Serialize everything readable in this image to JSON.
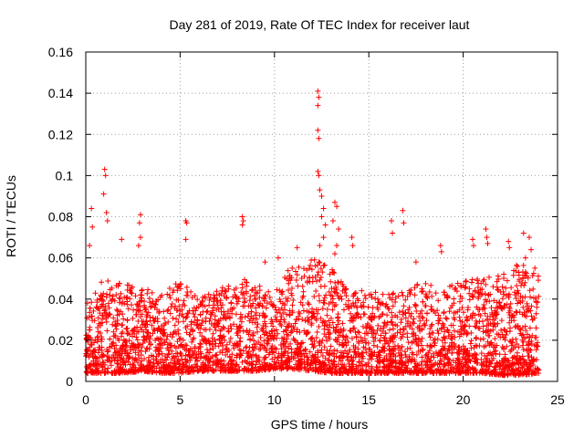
{
  "chart_data": {
    "type": "scatter",
    "title": "Day 281 of 2019, Rate Of TEC Index for receiver laut",
    "xlabel": "GPS time / hours",
    "ylabel": "ROTI / TECUs",
    "xlim": [
      0,
      25
    ],
    "ylim": [
      0,
      0.16
    ],
    "x_ticks": [
      0,
      5,
      10,
      15,
      20,
      25
    ],
    "x_tick_labels": [
      "0",
      "5",
      "10",
      "15",
      "20",
      "25"
    ],
    "y_ticks": [
      0,
      0.02,
      0.04,
      0.06,
      0.08,
      0.1,
      0.12,
      0.14,
      0.16
    ],
    "y_tick_labels": [
      "0",
      "0.02",
      "0.04",
      "0.06",
      "0.08",
      "0.1",
      "0.12",
      "0.14",
      "0.16"
    ],
    "grid": true,
    "marker": "+",
    "marker_color": "#ff0000",
    "series_note": "dense cloud of ROTI values between 0.003 and 0.06 across 0-24 h; spikes listed below",
    "base_envelope": {
      "hours": [
        0,
        1,
        2,
        3,
        4,
        5,
        6,
        7,
        8,
        9,
        10,
        11,
        12,
        13,
        14,
        15,
        16,
        17,
        18,
        19,
        20,
        21,
        22,
        23,
        24
      ],
      "upper": [
        0.04,
        0.05,
        0.05,
        0.046,
        0.042,
        0.05,
        0.04,
        0.045,
        0.052,
        0.048,
        0.044,
        0.058,
        0.06,
        0.055,
        0.045,
        0.045,
        0.042,
        0.046,
        0.048,
        0.045,
        0.05,
        0.05,
        0.052,
        0.058,
        0.055
      ],
      "lower": [
        0.004,
        0.004,
        0.004,
        0.005,
        0.004,
        0.004,
        0.005,
        0.005,
        0.005,
        0.005,
        0.006,
        0.006,
        0.005,
        0.004,
        0.004,
        0.004,
        0.004,
        0.004,
        0.004,
        0.004,
        0.004,
        0.004,
        0.003,
        0.003,
        0.004
      ]
    },
    "spikes": [
      {
        "x": 0.3,
        "y": 0.084
      },
      {
        "x": 0.35,
        "y": 0.075
      },
      {
        "x": 0.2,
        "y": 0.066
      },
      {
        "x": 1.0,
        "y": 0.103
      },
      {
        "x": 1.05,
        "y": 0.1
      },
      {
        "x": 0.95,
        "y": 0.091
      },
      {
        "x": 1.1,
        "y": 0.082
      },
      {
        "x": 1.15,
        "y": 0.078
      },
      {
        "x": 1.9,
        "y": 0.069
      },
      {
        "x": 2.9,
        "y": 0.081
      },
      {
        "x": 2.85,
        "y": 0.077
      },
      {
        "x": 2.9,
        "y": 0.07
      },
      {
        "x": 2.8,
        "y": 0.066
      },
      {
        "x": 5.3,
        "y": 0.078
      },
      {
        "x": 5.35,
        "y": 0.077
      },
      {
        "x": 5.3,
        "y": 0.069
      },
      {
        "x": 8.3,
        "y": 0.08
      },
      {
        "x": 8.35,
        "y": 0.078
      },
      {
        "x": 8.3,
        "y": 0.076
      },
      {
        "x": 9.5,
        "y": 0.058
      },
      {
        "x": 10.2,
        "y": 0.06
      },
      {
        "x": 11.2,
        "y": 0.065
      },
      {
        "x": 12.3,
        "y": 0.141
      },
      {
        "x": 12.35,
        "y": 0.138
      },
      {
        "x": 12.3,
        "y": 0.134
      },
      {
        "x": 12.3,
        "y": 0.122
      },
      {
        "x": 12.35,
        "y": 0.118
      },
      {
        "x": 12.3,
        "y": 0.102
      },
      {
        "x": 12.35,
        "y": 0.1
      },
      {
        "x": 12.4,
        "y": 0.093
      },
      {
        "x": 12.5,
        "y": 0.09
      },
      {
        "x": 12.6,
        "y": 0.084
      },
      {
        "x": 12.5,
        "y": 0.08
      },
      {
        "x": 12.7,
        "y": 0.076
      },
      {
        "x": 12.6,
        "y": 0.07
      },
      {
        "x": 12.4,
        "y": 0.066
      },
      {
        "x": 13.2,
        "y": 0.087
      },
      {
        "x": 13.3,
        "y": 0.085
      },
      {
        "x": 13.1,
        "y": 0.078
      },
      {
        "x": 13.4,
        "y": 0.074
      },
      {
        "x": 13.3,
        "y": 0.066
      },
      {
        "x": 13.2,
        "y": 0.062
      },
      {
        "x": 14.1,
        "y": 0.07
      },
      {
        "x": 14.15,
        "y": 0.066
      },
      {
        "x": 16.2,
        "y": 0.078
      },
      {
        "x": 16.25,
        "y": 0.072
      },
      {
        "x": 16.8,
        "y": 0.083
      },
      {
        "x": 16.85,
        "y": 0.077
      },
      {
        "x": 17.5,
        "y": 0.058
      },
      {
        "x": 18.8,
        "y": 0.066
      },
      {
        "x": 18.85,
        "y": 0.063
      },
      {
        "x": 20.5,
        "y": 0.069
      },
      {
        "x": 20.55,
        "y": 0.066
      },
      {
        "x": 21.2,
        "y": 0.074
      },
      {
        "x": 21.25,
        "y": 0.07
      },
      {
        "x": 21.3,
        "y": 0.067
      },
      {
        "x": 22.4,
        "y": 0.068
      },
      {
        "x": 22.45,
        "y": 0.065
      },
      {
        "x": 23.2,
        "y": 0.072
      },
      {
        "x": 23.5,
        "y": 0.07
      },
      {
        "x": 23.6,
        "y": 0.064
      },
      {
        "x": 23.3,
        "y": 0.06
      },
      {
        "x": 23.8,
        "y": 0.055
      }
    ]
  }
}
